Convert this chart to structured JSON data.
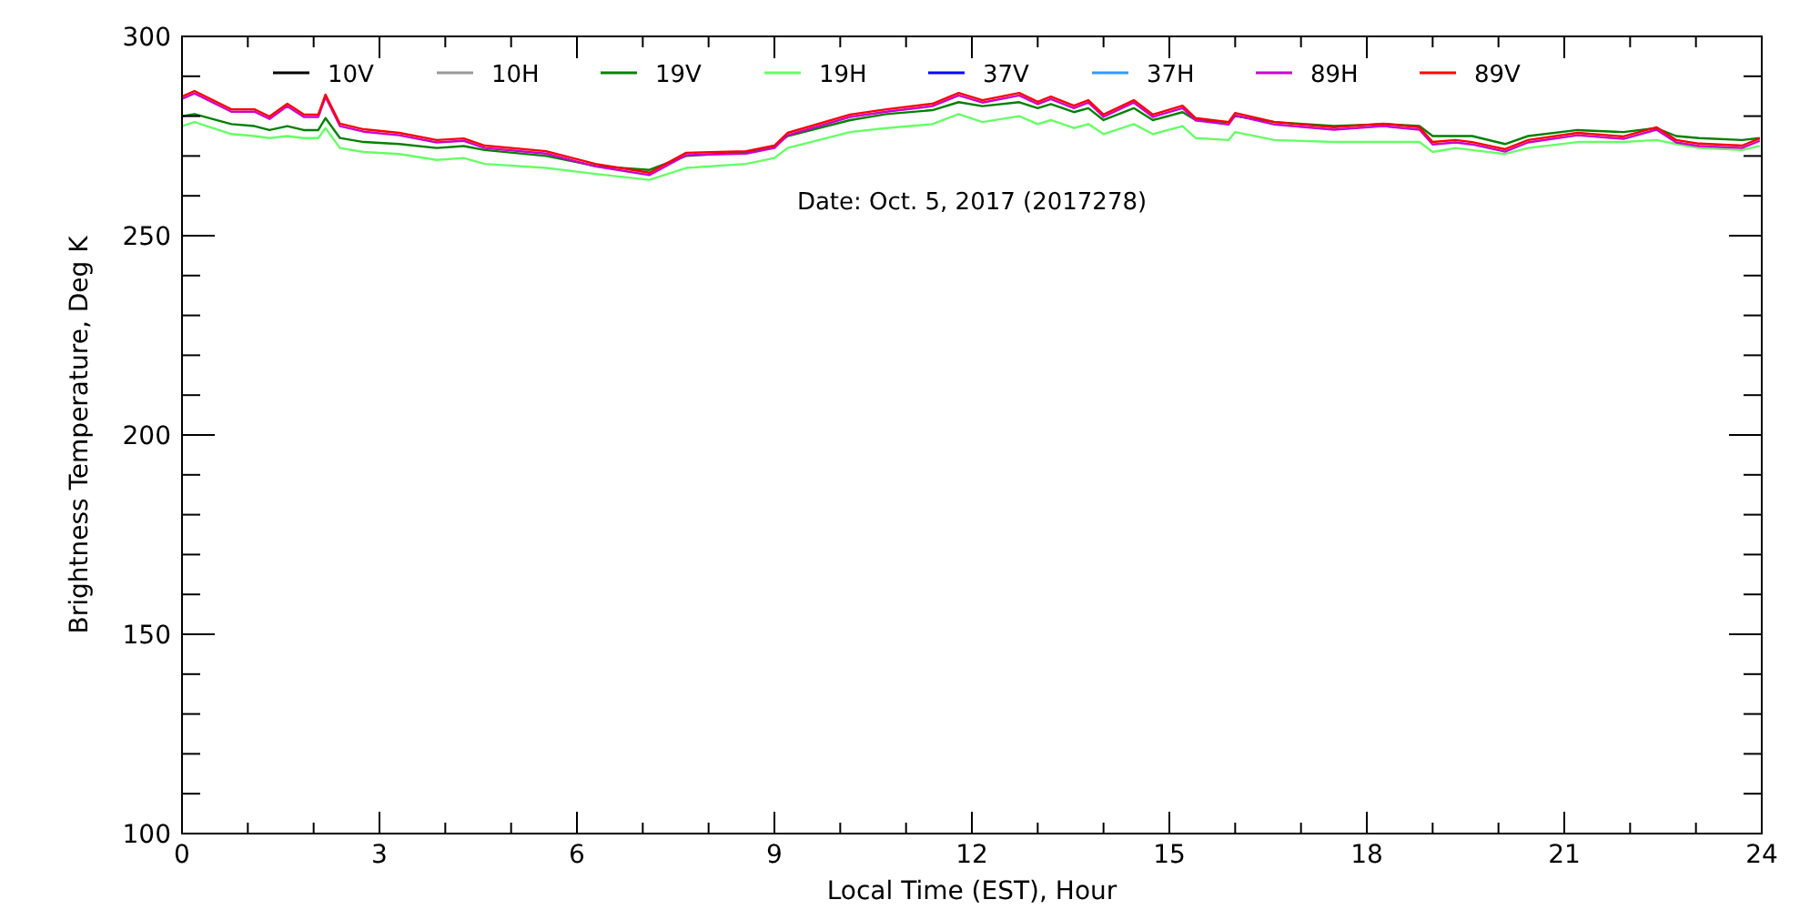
{
  "chart_data": {
    "type": "line",
    "xlabel": "Local Time (EST), Hour",
    "ylabel": "Brightness Temperature, Deg K",
    "annotations": [
      "Date: Oct. 5, 2017 (2017278)"
    ],
    "xlim": [
      0,
      24
    ],
    "ylim": [
      100,
      300
    ],
    "xticks": [
      0,
      {
        "value": 1,
        "label": null
      },
      {
        "value": 2,
        "label": null
      },
      3,
      {
        "value": 4,
        "label": null
      },
      {
        "value": 5,
        "label": null
      },
      6,
      {
        "value": 7,
        "label": null
      },
      {
        "value": 8,
        "label": null
      },
      9,
      {
        "value": 10,
        "label": null
      },
      {
        "value": 11,
        "label": null
      },
      12,
      {
        "value": 13,
        "label": null
      },
      {
        "value": 14,
        "label": null
      },
      15,
      {
        "value": 16,
        "label": null
      },
      {
        "value": 17,
        "label": null
      },
      18,
      {
        "value": 19,
        "label": null
      },
      {
        "value": 20,
        "label": null
      },
      21,
      {
        "value": 22,
        "label": null
      },
      {
        "value": 23,
        "label": null
      },
      24
    ],
    "yticks": [
      100,
      {
        "value": 110,
        "label": null
      },
      {
        "value": 120,
        "label": null
      },
      {
        "value": 130,
        "label": null
      },
      {
        "value": 140,
        "label": null
      },
      150,
      {
        "value": 160,
        "label": null
      },
      {
        "value": 170,
        "label": null
      },
      {
        "value": 180,
        "label": null
      },
      {
        "value": 190,
        "label": null
      },
      200,
      {
        "value": 210,
        "label": null
      },
      {
        "value": 220,
        "label": null
      },
      {
        "value": 230,
        "label": null
      },
      {
        "value": 240,
        "label": null
      },
      250,
      {
        "value": 260,
        "label": null
      },
      {
        "value": 270,
        "label": null
      },
      {
        "value": 280,
        "label": null
      },
      {
        "value": 290,
        "label": null
      },
      300
    ],
    "grid": false,
    "legend": "top",
    "marker": "none",
    "line_style": "solid",
    "x": [
      0,
      0.19,
      0.75,
      1.1,
      1.33,
      1.6,
      1.85,
      2.07,
      2.18,
      2.4,
      2.76,
      3.3,
      3.87,
      4.28,
      4.6,
      5.53,
      6.28,
      7.1,
      7.66,
      8.57,
      9,
      9.2,
      10.15,
      10.7,
      11.4,
      11.8,
      12.16,
      12.72,
      13,
      13.2,
      13.55,
      13.77,
      14,
      14.46,
      14.75,
      15.2,
      15.4,
      15.9,
      16,
      16.6,
      17.5,
      18.25,
      18.8,
      19,
      19.35,
      19.6,
      20.1,
      20.45,
      21.2,
      21.9,
      22.4,
      22.7,
      23.05,
      23.7,
      23.97
    ],
    "series": [
      {
        "name": "10V",
        "color": "#000000",
        "values": [
          null,
          null,
          null,
          null,
          null,
          null,
          null,
          null,
          null,
          null,
          null,
          null,
          null,
          null,
          null,
          null,
          null,
          null,
          null,
          null,
          null,
          null,
          null,
          null,
          null,
          null,
          null,
          null,
          null,
          null,
          null,
          null,
          null,
          null,
          null,
          null,
          null,
          null,
          null,
          null,
          null,
          null,
          null,
          null,
          null,
          null,
          null,
          null,
          null,
          null,
          null,
          null,
          null,
          null,
          null
        ]
      },
      {
        "name": "10H",
        "color": "#999999",
        "values": [
          null,
          null,
          null,
          null,
          null,
          null,
          null,
          null,
          null,
          null,
          null,
          null,
          null,
          null,
          null,
          null,
          null,
          null,
          null,
          null,
          null,
          null,
          null,
          null,
          null,
          null,
          null,
          null,
          null,
          null,
          null,
          null,
          null,
          null,
          null,
          null,
          null,
          null,
          null,
          null,
          null,
          null,
          null,
          null,
          null,
          null,
          null,
          null,
          null,
          null,
          null,
          null,
          null,
          null,
          null
        ]
      },
      {
        "name": "19V",
        "color": "#008000",
        "values": [
          280,
          280.5,
          278,
          277.5,
          276.5,
          277.5,
          276.5,
          276.5,
          279.5,
          274.5,
          273.5,
          273,
          272,
          272.5,
          271.5,
          270,
          267.5,
          266.5,
          270,
          271,
          272.5,
          275,
          279,
          280.5,
          281.5,
          283.5,
          282.5,
          283.5,
          282,
          283,
          281,
          282,
          279,
          282,
          279,
          281,
          279,
          278.5,
          280,
          278.5,
          277.5,
          278,
          277.5,
          275,
          275,
          275,
          273,
          275,
          276.5,
          276,
          277,
          275,
          274.5,
          274,
          274.5
        ]
      },
      {
        "name": "19H",
        "color": "#66ff66",
        "values": [
          277.5,
          278.5,
          275.5,
          275,
          274.5,
          275,
          274.5,
          274.5,
          277,
          272,
          271,
          270.5,
          269,
          269.5,
          268,
          267,
          265.5,
          264,
          267,
          268,
          269.5,
          272,
          276,
          277,
          278,
          280.5,
          278.5,
          280,
          278,
          279,
          277,
          278,
          275.5,
          278,
          275.5,
          277.5,
          274.5,
          274,
          276,
          274,
          273.5,
          273.5,
          273.5,
          271,
          272,
          271.5,
          270.5,
          272,
          273.5,
          273.5,
          274,
          273,
          272,
          271.5,
          272.5
        ]
      },
      {
        "name": "37V",
        "color": "#0000ff",
        "values": [
          null,
          null,
          null,
          null,
          null,
          null,
          null,
          null,
          null,
          null,
          null,
          null,
          null,
          null,
          null,
          null,
          null,
          null,
          null,
          null,
          null,
          null,
          null,
          null,
          null,
          null,
          null,
          null,
          null,
          null,
          null,
          null,
          null,
          null,
          null,
          null,
          null,
          null,
          null,
          null,
          null,
          null,
          null,
          null,
          null,
          null,
          null,
          null,
          null,
          null,
          null,
          null,
          null,
          null,
          null
        ]
      },
      {
        "name": "37H",
        "color": "#3399ff",
        "values": [
          null,
          null,
          null,
          null,
          null,
          null,
          null,
          null,
          null,
          null,
          null,
          null,
          null,
          null,
          null,
          null,
          null,
          null,
          null,
          null,
          null,
          null,
          null,
          null,
          null,
          null,
          null,
          null,
          null,
          null,
          null,
          null,
          null,
          null,
          null,
          null,
          null,
          null,
          null,
          null,
          null,
          null,
          null,
          null,
          null,
          null,
          null,
          null,
          null,
          null,
          null,
          null,
          null,
          null,
          null
        ]
      },
      {
        "name": "89H",
        "color": "#cc00cc",
        "values": [
          284.3,
          285.7,
          281.1,
          281.1,
          279.3,
          282.5,
          279.8,
          279.8,
          284.8,
          277.5,
          276.1,
          275.2,
          273.4,
          273.8,
          272,
          270.6,
          267.4,
          265.2,
          270.2,
          270.6,
          272,
          275.2,
          279.8,
          281.1,
          282.5,
          285.2,
          283.4,
          285.2,
          283,
          284.3,
          282,
          283.4,
          279.8,
          283.4,
          279.8,
          282,
          278.9,
          277.9,
          280.2,
          277.9,
          276.6,
          277.5,
          276.6,
          272.9,
          273.4,
          272.9,
          271.1,
          273.4,
          275.2,
          274.3,
          276.6,
          273.4,
          272.5,
          272,
          273.8
        ]
      },
      {
        "name": "89V",
        "color": "#ff0000",
        "values": [
          284.9,
          286.3,
          281.7,
          281.7,
          279.9,
          283.1,
          280.4,
          280.4,
          285.4,
          278.1,
          276.7,
          275.8,
          274,
          274.4,
          272.6,
          271.2,
          268,
          265.8,
          270.8,
          271.2,
          272.6,
          275.8,
          280.4,
          281.7,
          283.1,
          285.8,
          284,
          285.8,
          283.6,
          284.9,
          282.6,
          284,
          280.4,
          284,
          280.4,
          282.6,
          279.5,
          278.5,
          280.8,
          278.5,
          277.2,
          278.1,
          277.2,
          273.5,
          274,
          273.5,
          271.7,
          274,
          275.8,
          274.9,
          277.2,
          274,
          273.1,
          272.6,
          274.4
        ]
      }
    ]
  }
}
